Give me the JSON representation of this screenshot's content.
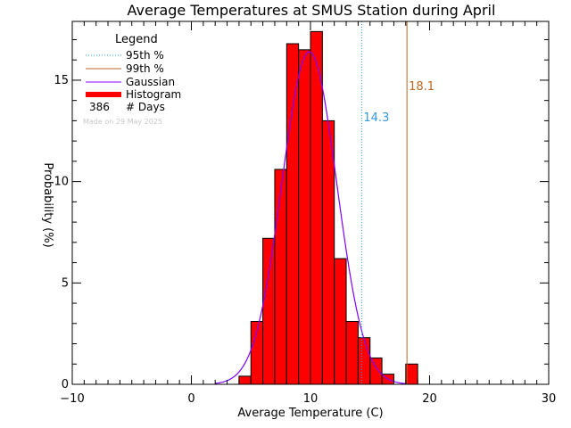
{
  "chart_data": {
    "type": "bar",
    "title": "Average Temperatures at SMUS Station during April",
    "xlabel": "Average Temperature (C)",
    "ylabel": "Probability (%)",
    "xlim": [
      -10,
      30
    ],
    "ylim": [
      0,
      17.9
    ],
    "xticks": [
      -10,
      0,
      10,
      20,
      30
    ],
    "yticks": [
      0,
      5,
      10,
      15
    ],
    "histogram": {
      "name": "Histogram",
      "bin_width": 1,
      "bin_edges": [
        4,
        5,
        6,
        7,
        8,
        9,
        10,
        11,
        12,
        13,
        14,
        15,
        16,
        17,
        18,
        19
      ],
      "values": [
        0.4,
        3.1,
        7.2,
        10.6,
        16.8,
        16.5,
        17.4,
        13.0,
        6.2,
        3.1,
        2.3,
        1.3,
        0.5,
        0.0,
        1.0
      ],
      "color": "#ff0000"
    },
    "gaussian": {
      "name": "Gaussian",
      "mean": 9.9,
      "sd": 2.3,
      "peak": 16.4,
      "x_range": [
        2,
        18
      ],
      "color": "#8000ff"
    },
    "percentiles": [
      {
        "name": "95th %",
        "value": 14.3,
        "label": "14.3",
        "color": "#3399dd",
        "style": "dotted"
      },
      {
        "name": "99th %",
        "value": 18.1,
        "label": "18.1",
        "color": "#bb6622",
        "style": "solid"
      }
    ],
    "legend": {
      "title": "Legend",
      "placement": "top-left",
      "days_count": "386",
      "days_label": "# Days",
      "watermark": "Made on 29 May 2025"
    }
  }
}
